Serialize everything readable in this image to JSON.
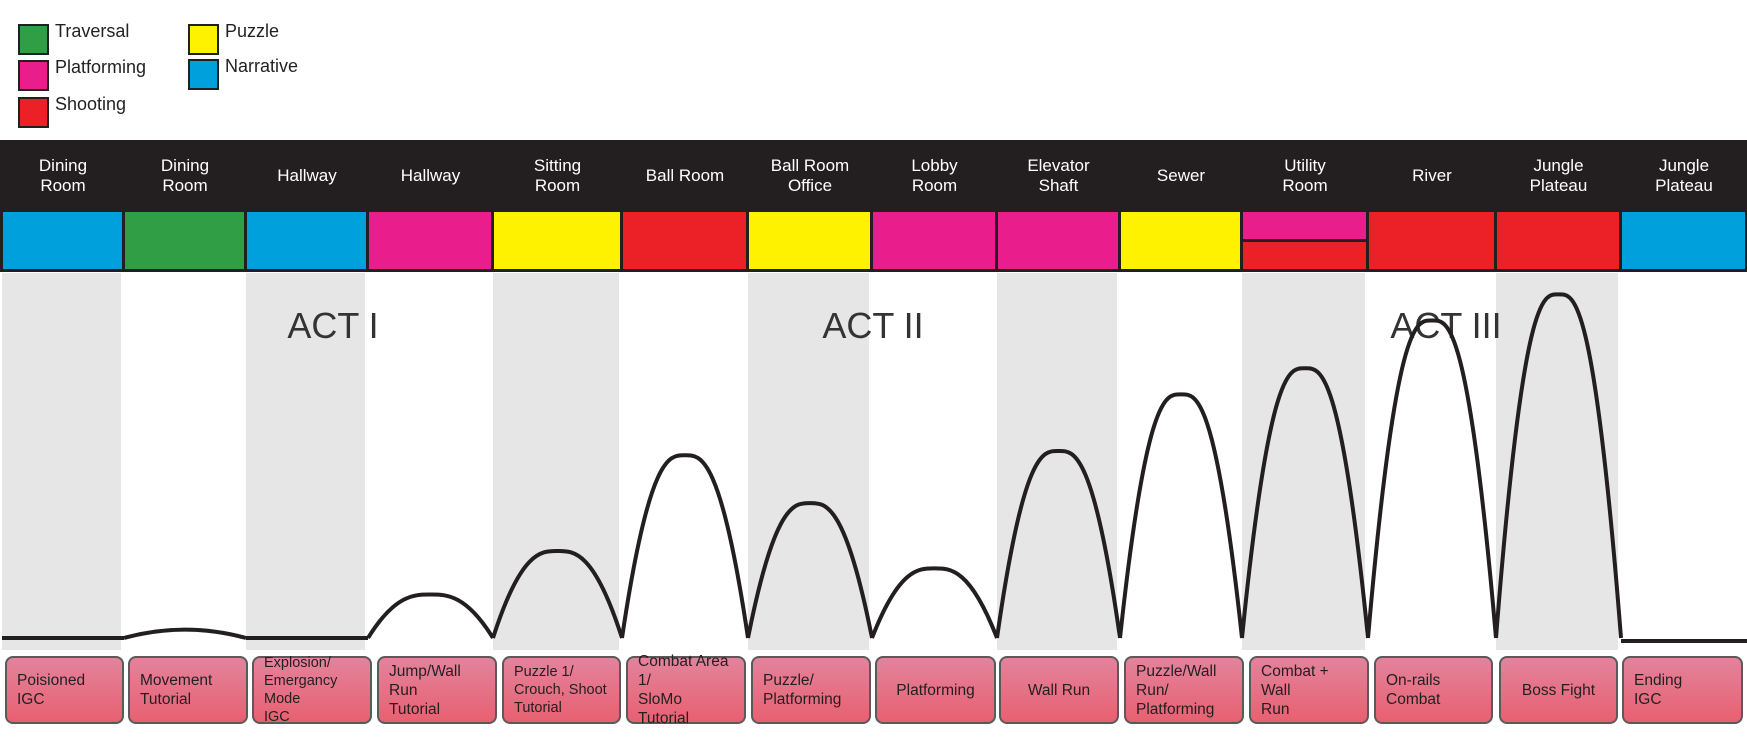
{
  "legend": [
    {
      "label": "Traversal",
      "color": "#2f9e44"
    },
    {
      "label": "Platforming",
      "color": "#e91e8c"
    },
    {
      "label": "Shooting",
      "color": "#ec2027"
    },
    {
      "label": "Puzzle",
      "color": "#fff200"
    },
    {
      "label": "Narrative",
      "color": "#00a0dc"
    }
  ],
  "colors": {
    "Traversal": "#2f9e44",
    "Platforming": "#e91e8c",
    "Shooting": "#ec2027",
    "Puzzle": "#fff200",
    "Narrative": "#00a0dc",
    "band": "#231f20"
  },
  "acts": [
    {
      "label": "ACT I"
    },
    {
      "label": "ACT II"
    },
    {
      "label": "ACT III"
    }
  ],
  "rooms": [
    {
      "title_lines": [
        "Dining",
        "Room"
      ],
      "tags": [
        "Narrative"
      ],
      "event_lines": [
        "Poisioned",
        "IGC"
      ],
      "intensity": 0
    },
    {
      "title_lines": [
        "Dining",
        "Room"
      ],
      "tags": [
        "Traversal"
      ],
      "event_lines": [
        "Movement",
        "Tutorial"
      ],
      "intensity": 2
    },
    {
      "title_lines": [
        "Hallway"
      ],
      "tags": [
        "Narrative"
      ],
      "event_lines": [
        "Explosion/",
        "Emergancy Mode",
        "IGC"
      ],
      "intensity": 0
    },
    {
      "title_lines": [
        "Hallway"
      ],
      "tags": [
        "Platforming"
      ],
      "event_lines": [
        "Jump/Wall Run",
        "Tutorial"
      ],
      "intensity": 10
    },
    {
      "title_lines": [
        "Sitting",
        "Room"
      ],
      "tags": [
        "Puzzle"
      ],
      "event_lines": [
        "Puzzle 1/",
        "Crouch, Shoot",
        "Tutorial"
      ],
      "intensity": 20
    },
    {
      "title_lines": [
        "Ball Room"
      ],
      "tags": [
        "Shooting"
      ],
      "event_lines": [
        "Combat Area 1/",
        "SloMo Tutorial"
      ],
      "intensity": 42
    },
    {
      "title_lines": [
        "Ball Room",
        "Office"
      ],
      "tags": [
        "Puzzle"
      ],
      "event_lines": [
        "Puzzle/",
        "Platforming"
      ],
      "intensity": 31
    },
    {
      "title_lines": [
        "Lobby",
        "Room"
      ],
      "tags": [
        "Platforming"
      ],
      "event_lines": [
        "Platforming"
      ],
      "intensity": 16
    },
    {
      "title_lines": [
        "Elevator",
        "Shaft"
      ],
      "tags": [
        "Platforming"
      ],
      "event_lines": [
        "Wall Run"
      ],
      "intensity": 43
    },
    {
      "title_lines": [
        "Sewer"
      ],
      "tags": [
        "Puzzle"
      ],
      "event_lines": [
        "Puzzle/Wall Run/",
        "Platforming"
      ],
      "intensity": 56
    },
    {
      "title_lines": [
        "Utility",
        "Room"
      ],
      "tags": [
        "Platforming",
        "Shooting"
      ],
      "event_lines": [
        "Combat + Wall",
        "Run"
      ],
      "intensity": 62
    },
    {
      "title_lines": [
        "River"
      ],
      "tags": [
        "Shooting"
      ],
      "event_lines": [
        "On-rails",
        "Combat"
      ],
      "intensity": 73
    },
    {
      "title_lines": [
        "Jungle",
        "Plateau"
      ],
      "tags": [
        "Shooting"
      ],
      "event_lines": [
        "Boss Fight"
      ],
      "intensity": 79
    },
    {
      "title_lines": [
        "Jungle",
        "Plateau"
      ],
      "tags": [
        "Narrative"
      ],
      "event_lines": [
        "Ending",
        "IGC"
      ],
      "intensity": 0
    }
  ]
}
